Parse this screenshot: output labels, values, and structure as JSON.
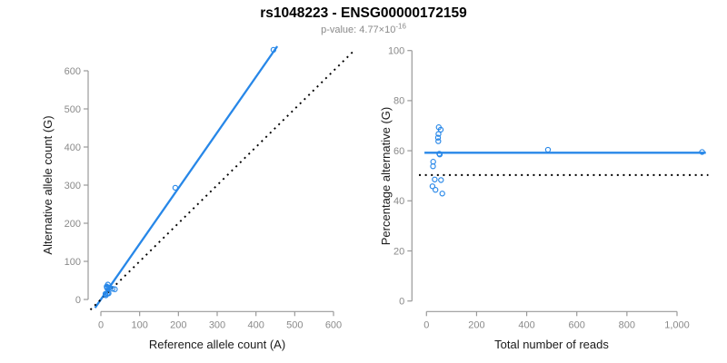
{
  "header": {
    "title": "rs1048223 - ENSG00000172159",
    "pvalue_label": "p-value: 4.77×10",
    "pvalue_exponent": "-16"
  },
  "colors": {
    "accent_blue": "#2787e8",
    "line_black": "#000000",
    "axis_gray": "#999999",
    "tick_label_gray": "#8a8a8a",
    "axis_title_dark": "#1a1a1a"
  },
  "samples": [
    {
      "ref": 15,
      "alt": 34,
      "total": 49,
      "pct": 69.4
    },
    {
      "ref": 18,
      "alt": 39,
      "total": 57,
      "pct": 68.4
    },
    {
      "ref": 16,
      "alt": 32,
      "total": 48,
      "pct": 66.7
    },
    {
      "ref": 16,
      "alt": 30,
      "total": 46,
      "pct": 65.2
    },
    {
      "ref": 17,
      "alt": 30,
      "total": 47,
      "pct": 63.8
    },
    {
      "ref": 21,
      "alt": 30,
      "total": 51,
      "pct": 58.8
    },
    {
      "ref": 22,
      "alt": 31,
      "total": 53,
      "pct": 58.5
    },
    {
      "ref": 12,
      "alt": 15,
      "total": 27,
      "pct": 55.6
    },
    {
      "ref": 12,
      "alt": 14,
      "total": 26,
      "pct": 53.8
    },
    {
      "ref": 17,
      "alt": 16,
      "total": 33,
      "pct": 48.5
    },
    {
      "ref": 30,
      "alt": 28,
      "total": 58,
      "pct": 48.3
    },
    {
      "ref": 13,
      "alt": 11,
      "total": 24,
      "pct": 45.8
    },
    {
      "ref": 20,
      "alt": 16,
      "total": 36,
      "pct": 44.4
    },
    {
      "ref": 36,
      "alt": 27,
      "total": 63,
      "pct": 42.9
    },
    {
      "ref": 192,
      "alt": 293,
      "total": 485,
      "pct": 60.4
    },
    {
      "ref": 445,
      "alt": 655,
      "total": 1100,
      "pct": 59.5
    }
  ],
  "chart_data": [
    {
      "type": "scatter",
      "title": "rs1048223 - ENSG00000172159",
      "subtitle": "p-value: 4.77×10^-16",
      "xlabel": "Reference allele count (A)",
      "ylabel": "Alternative allele count (G)",
      "xlim": [
        0,
        600
      ],
      "ylim": [
        0,
        600
      ],
      "xtick_values": [
        0,
        100,
        200,
        300,
        400,
        500,
        600
      ],
      "xtick_labels": [
        "0",
        "100",
        "200",
        "300",
        "400",
        "500",
        "600"
      ],
      "ytick_values": [
        0,
        100,
        200,
        300,
        400,
        500,
        600
      ],
      "ytick_labels": [
        "0",
        "100",
        "200",
        "300",
        "400",
        "500",
        "600"
      ],
      "grid": false,
      "legend": "none",
      "points_from": [
        "ref",
        "alt"
      ],
      "lines": [
        {
          "name": "regression-fit",
          "slope": 1.46,
          "intercept": 0,
          "x_range": [
            -15,
            455
          ],
          "style": "solid",
          "color": "accent_blue"
        },
        {
          "name": "identity-diagonal",
          "slope": 1,
          "intercept": 0,
          "x_range": [
            -27,
            652
          ],
          "style": "dotted",
          "color": "line_black"
        }
      ]
    },
    {
      "type": "scatter",
      "title": "rs1048223 - ENSG00000172159",
      "subtitle": "p-value: 4.77×10^-16",
      "xlabel": "Total number of reads",
      "ylabel": "Percentage alternative (G)",
      "xlim": [
        0,
        1000
      ],
      "ylim": [
        0,
        100
      ],
      "xtick_values": [
        0,
        200,
        400,
        600,
        800,
        1000
      ],
      "xtick_labels": [
        "0",
        "200",
        "400",
        "600",
        "800",
        "1,000"
      ],
      "ytick_values": [
        0,
        20,
        40,
        60,
        80,
        100
      ],
      "ytick_labels": [
        "0",
        "20",
        "40",
        "60",
        "80",
        "100"
      ],
      "grid": false,
      "legend": "none",
      "points_from": [
        "total",
        "pct"
      ],
      "lines": [
        {
          "name": "mean-percentage",
          "slope": 0,
          "intercept": 59.2,
          "x_range": [
            -8,
            1115
          ],
          "style": "solid",
          "color": "accent_blue"
        },
        {
          "name": "fifty-percent-reference",
          "slope": 0,
          "intercept": 50.3,
          "x_range": [
            -30,
            1125
          ],
          "style": "dotted",
          "color": "line_black"
        }
      ]
    }
  ]
}
